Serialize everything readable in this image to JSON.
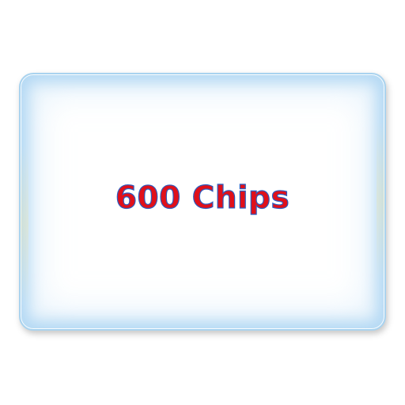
{
  "card": {
    "label": "600 Chips"
  },
  "colors": {
    "text_fill": "#e0101a",
    "text_outline": "#2a5cc0",
    "card_border": "#a9d3ef",
    "card_glow": "#aad4f2"
  }
}
